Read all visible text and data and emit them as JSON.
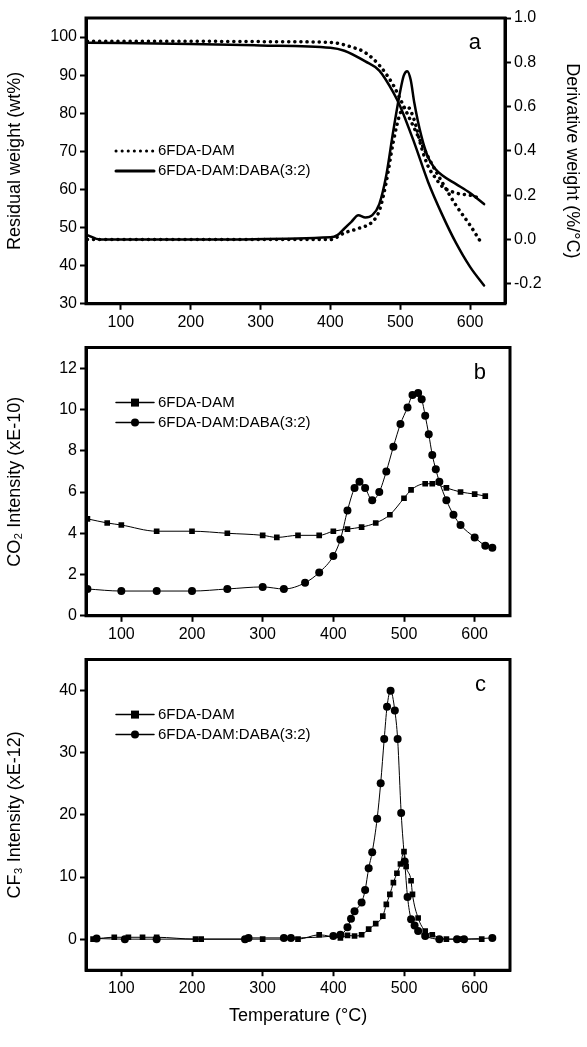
{
  "chart_data": [
    {
      "type": "line",
      "ylabel": "Residual weight (wt%)",
      "y2label": "Derivative weight (%/°C)",
      "annotations": [
        "a"
      ],
      "xlim": [
        50,
        650
      ],
      "xticks": [
        100,
        200,
        300,
        400,
        500,
        600
      ],
      "ylim": [
        30,
        105
      ],
      "yticks": [
        30,
        40,
        50,
        60,
        70,
        80,
        90,
        100
      ],
      "y2lim": [
        -0.29,
        1.0
      ],
      "y2ticks": [
        {
          "value": -0.2,
          "label": "-0.2"
        },
        {
          "value": 0,
          "label": "0.0"
        },
        0.2,
        0.4,
        0.6,
        0.8,
        {
          "value": 1,
          "label": "1.0"
        }
      ],
      "grid": false,
      "legend": "center left",
      "series": [
        {
          "name": "6FDA-DAM",
          "color": "#000000",
          "line_style": "dotted",
          "marker": "none",
          "x": [
            52,
            200,
            300,
            400,
            430,
            450,
            470,
            490,
            500,
            520,
            540,
            560,
            580,
            600,
            615
          ],
          "values": [
            98.9,
            98.9,
            98.8,
            98.6,
            97.4,
            95.9,
            92.6,
            87.4,
            83.7,
            76.1,
            68.5,
            61.9,
            55.8,
            50.6,
            46.3
          ]
        },
        {
          "name": "6FDA-DAM:DABA(3:2)",
          "color": "#000000",
          "line_style": "solid",
          "marker": "none",
          "x": [
            52,
            200,
            300,
            400,
            420,
            450,
            470,
            490,
            500,
            520,
            540,
            560,
            580,
            600,
            620
          ],
          "values": [
            98.5,
            98.2,
            97.8,
            97.2,
            96.4,
            93.6,
            91.2,
            85.5,
            81.8,
            72.3,
            61.9,
            53.4,
            45.9,
            39.7,
            34.8
          ]
        },
        {
          "color": "#000000",
          "axis": "y2",
          "line_style": "dotted",
          "marker": "none",
          "x": [
            52,
            200,
            400,
            420,
            440,
            460,
            470,
            480,
            490,
            500,
            510,
            520,
            530,
            540,
            550,
            560,
            580,
            600,
            610
          ],
          "values": [
            0.0,
            0.0,
            0.0,
            0.03,
            0.05,
            0.08,
            0.13,
            0.26,
            0.44,
            0.57,
            0.6,
            0.54,
            0.42,
            0.33,
            0.28,
            0.24,
            0.21,
            0.2,
            0.19
          ]
        },
        {
          "color": "#000000",
          "axis": "y2",
          "line_style": "solid",
          "marker": "none",
          "x": [
            52,
            70,
            200,
            400,
            410,
            420,
            430,
            440,
            450,
            460,
            470,
            480,
            490,
            500,
            505,
            510,
            515,
            520,
            530,
            540,
            550,
            560,
            580,
            600,
            620
          ],
          "values": [
            0.02,
            0.0,
            0.0,
            0.01,
            0.02,
            0.05,
            0.08,
            0.11,
            0.1,
            0.11,
            0.16,
            0.29,
            0.49,
            0.67,
            0.74,
            0.76,
            0.72,
            0.62,
            0.47,
            0.37,
            0.32,
            0.29,
            0.25,
            0.21,
            0.16
          ]
        }
      ]
    },
    {
      "type": "line",
      "ylabel": "CO₂ Intensity (xE-10)",
      "annotations": [
        "b"
      ],
      "xlim": [
        50,
        650
      ],
      "xticks": [
        100,
        200,
        300,
        400,
        500,
        600
      ],
      "ylim": [
        0,
        13
      ],
      "yticks": [
        0,
        2,
        4,
        6,
        8,
        10,
        12
      ],
      "grid": false,
      "legend": "top left",
      "series": [
        {
          "name": "6FDA-DAM",
          "color": "#000000",
          "line_style": "solid",
          "marker": "square",
          "x": [
            52,
            80,
            100,
            150,
            200,
            250,
            300,
            320,
            350,
            380,
            400,
            420,
            440,
            460,
            480,
            500,
            510,
            530,
            540,
            560,
            580,
            600,
            615
          ],
          "values": [
            4.7,
            4.5,
            4.4,
            4.1,
            4.1,
            4.0,
            3.9,
            3.8,
            3.9,
            3.9,
            4.1,
            4.2,
            4.3,
            4.5,
            4.9,
            5.7,
            6.1,
            6.4,
            6.4,
            6.2,
            6.0,
            5.9,
            5.8
          ]
        },
        {
          "name": "6FDA-DAM:DABA(3:2)",
          "color": "#000000",
          "line_style": "solid",
          "marker": "circle",
          "x": [
            52,
            100,
            150,
            200,
            250,
            300,
            330,
            360,
            380,
            400,
            410,
            420,
            430,
            437,
            445,
            455,
            465,
            475,
            485,
            495,
            505,
            512,
            520,
            525,
            530,
            535,
            540,
            545,
            550,
            560,
            570,
            580,
            600,
            615,
            625
          ],
          "values": [
            1.3,
            1.2,
            1.2,
            1.2,
            1.3,
            1.4,
            1.3,
            1.6,
            2.1,
            2.9,
            3.7,
            5.1,
            6.2,
            6.5,
            6.2,
            5.6,
            6.0,
            7.0,
            8.2,
            9.3,
            10.1,
            10.7,
            10.8,
            10.5,
            9.7,
            8.8,
            7.8,
            7.1,
            6.5,
            5.6,
            4.9,
            4.4,
            3.8,
            3.4,
            3.3
          ]
        }
      ]
    },
    {
      "type": "line",
      "xlabel": "Temperature (°C)",
      "ylabel": "CF₃ Intensity (xE-12)",
      "annotations": [
        "c"
      ],
      "xlim": [
        50,
        650
      ],
      "xticks": [
        100,
        200,
        300,
        400,
        500,
        600
      ],
      "ylim": [
        -5,
        45
      ],
      "yticks": [
        0,
        10,
        20,
        30,
        40
      ],
      "grid": false,
      "legend": "top left",
      "series": [
        {
          "name": "6FDA-DAM",
          "color": "#000000",
          "line_style": "solid",
          "marker": "square",
          "x": [
            60,
            90,
            110,
            130,
            150,
            205,
            213,
            300,
            350,
            380,
            400,
            410,
            420,
            430,
            440,
            450,
            460,
            470,
            475,
            480,
            485,
            490,
            495,
            500,
            503,
            510,
            512,
            520,
            530,
            540,
            560,
            580,
            610
          ],
          "values": [
            0,
            0.3,
            0.3,
            0.3,
            0.3,
            0,
            0,
            0,
            0,
            0.7,
            null,
            0.2,
            0.6,
            0.5,
            0.7,
            1.6,
            2.5,
            3.7,
            5.6,
            7.2,
            9.1,
            10.6,
            12.1,
            14.1,
            11.7,
            9.4,
            7.2,
            3.4,
            1.3,
            0.7,
            0,
            0,
            0
          ]
        },
        {
          "name": "6FDA-DAM:DABA(3:2)",
          "color": "#000000",
          "line_style": "solid",
          "marker": "circle",
          "x": [
            65,
            105,
            150,
            275,
            280,
            330,
            340,
            400,
            410,
            420,
            425,
            430,
            440,
            445,
            450,
            455,
            462,
            467,
            472,
            476,
            481,
            487,
            491,
            496,
            501,
            505,
            510,
            515,
            520,
            530,
            550,
            575,
            585,
            625
          ],
          "values": [
            0.1,
            0,
            0,
            0,
            0.2,
            0.2,
            0.2,
            0.5,
            0.7,
            1.9,
            3.3,
            4.5,
            5.9,
            7.9,
            11.4,
            14,
            19.4,
            25.1,
            32.2,
            37.4,
            40,
            36.8,
            32.2,
            20.3,
            12.5,
            6.8,
            3.2,
            2.2,
            1.3,
            0.5,
            0,
            0,
            0,
            0.2
          ]
        }
      ]
    }
  ]
}
